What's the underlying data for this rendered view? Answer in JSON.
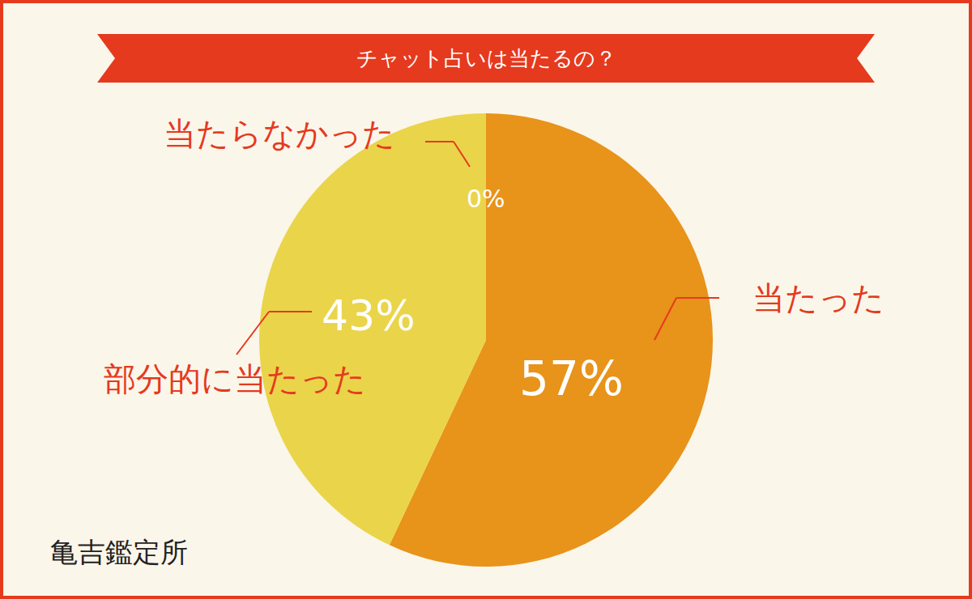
{
  "chart_data": {
    "type": "pie",
    "title": "チャット占いは当たるの？",
    "categories": [
      "当たった",
      "部分的に当たった",
      "当たらなかった"
    ],
    "values": [
      57,
      43,
      0
    ],
    "value_labels": [
      "57%",
      "43%",
      "0%"
    ],
    "colors": [
      "#E8931A",
      "#EAD44A",
      "#E3C93E"
    ],
    "data_labels": true,
    "annotations": [
      "亀吉鑑定所"
    ]
  }
}
